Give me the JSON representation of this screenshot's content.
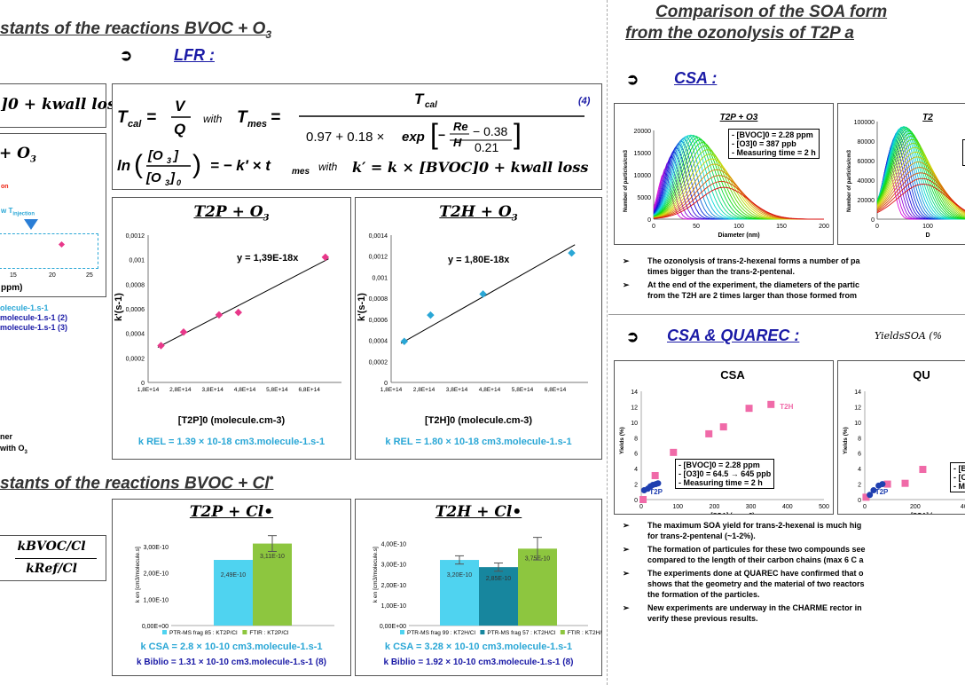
{
  "left": {
    "title1": "stants of the reactions BVOC + O",
    "title1_sub": "3",
    "lfr_label": "LFR :",
    "formula_frag": "]0 + kwall loss",
    "eq_tcal": "T",
    "eq_with": "with",
    "eq_num": "4",
    "eq_with2": "with",
    "eq_k_prime": "k′ = k × [BVOC]0 + kwall loss",
    "plus_o3_frag": "+ O",
    "plus_o3_sub": "3",
    "injection_frag": "w T",
    "injection_sub": "injection",
    "red_frag": "on",
    "ppm_frag": "ppm)",
    "axis_ticks_left": [
      "15",
      "20",
      "25"
    ],
    "molecule_frag1": "olecule-1.s-1",
    "molecule_frag2": "molecule-1.s-1 (2)",
    "molecule_frag3": "molecule-1.s-1 (3)",
    "ner_frag": "ner",
    "with_o3_frag": "with O",
    "with_o3_sub": "3",
    "title2": "stants of the reactions BVOC + Cl",
    "title2_sup": "•",
    "kbvoc_num": "kBVOC/Cl",
    "kref_den": "kRef/Cl"
  },
  "charts": {
    "t2p_o3": {
      "title": "T2P + O",
      "title_sub": "3",
      "equation": "y = 1,39E-18x",
      "ylabel": "k'(s-1)",
      "xlabel": "[T2P]0 (molecule.cm-3)",
      "k_rel": "k REL = 1.39 × 10-18 cm3.molecule-1.s-1"
    },
    "t2h_o3": {
      "title": "T2H + O",
      "title_sub": "3",
      "equation": "y = 1,80E-18x",
      "ylabel": "k'(s-1)",
      "xlabel": "[T2H]0 (molecule.cm-3)",
      "k_rel": "k REL = 1.80 × 10-18 cm3.molecule-1.s-1"
    },
    "t2p_cl": {
      "title": "T2P + Cl•",
      "ylabel": "k en [cm3/molecule.s]",
      "legend": [
        "PTR-MS frag 85 : KT2P/Cl",
        "FTIR : KT2P/Cl"
      ],
      "k_csa": "k CSA = 2.8 × 10-10 cm3.molecule-1.s-1",
      "k_biblio": "k Biblio = 1.31 × 10-10 cm3.molecule-1.s-1 (8)"
    },
    "t2h_cl": {
      "title": "T2H + Cl•",
      "ylabel": "k en [cm3/molecule.s]",
      "legend": [
        "PTR-MS frag 99 : KT2H/Cl",
        "PTR-MS frag 57 : KT2H/Cl",
        "FTIR : KT2H/Cl"
      ],
      "k_csa": "k CSA = 3.28 × 10-10 cm3.molecule-1.s-1",
      "k_biblio": "k Biblio = 1.92 × 10-10 cm3.molecule-1.s-1 (8)"
    },
    "csa_dist_t2p": {
      "title": "T2P + O3",
      "ylabel": "Number of particles/cm3",
      "xlabel": "Diameter (nm)",
      "info": [
        "- [BVOC]0 = 2.28  ppm",
        "- [O3]0 = 387 ppb",
        "- Measuring time = 2 h"
      ]
    },
    "csa_dist_t2h": {
      "title": "T2",
      "ylabel": "Number of particles/cm3",
      "xlabel": "D"
    },
    "yield_csa": {
      "title": "CSA",
      "ylabel": "Yields (%)",
      "xlabel": "[SOA] (µg.m-3)",
      "series_t2h": "T2H",
      "series_t2p": "T2P",
      "info": [
        "- [BVOC]0 = 2.28 ppm",
        "- [O3]0 = 64.5 → 645  ppb",
        "- Measuring time = 2 h"
      ]
    },
    "yield_quarec": {
      "title": "QU",
      "ylabel": "Yields (%)",
      "xlabel": "[SOA] (",
      "series_t2p": "T2P",
      "info": [
        "- [B",
        "- [O",
        "- M"
      ]
    }
  },
  "chart_data": [
    {
      "type": "scatter",
      "title": "T2P + O3",
      "xlabel": "[T2P]0 (molecule.cm-3)",
      "ylabel": "k'(s-1)",
      "xlim": [
        180000000000000.0,
        780000000000000.0
      ],
      "ylim": [
        0,
        0.0012
      ],
      "x_ticks": [
        "1,8E+14",
        "2,8E+14",
        "3,8E+14",
        "4,8E+14",
        "5,8E+14",
        "6,8E+14"
      ],
      "y_ticks": [
        "0",
        "0,0002",
        "0,0004",
        "0,0006",
        "0,0008",
        "0,001",
        "0,0012"
      ],
      "x": [
        220000000000000.0,
        290000000000000.0,
        400000000000000.0,
        460000000000000.0,
        730000000000000.0
      ],
      "y": [
        0.0003,
        0.00041,
        0.00055,
        0.00057,
        0.00102
      ],
      "color": "#e8388a"
    },
    {
      "type": "scatter",
      "title": "T2H + O3",
      "xlabel": "[T2H]0 (molecule.cm-3)",
      "ylabel": "k'(s-1)",
      "xlim": [
        180000000000000.0,
        780000000000000.0
      ],
      "ylim": [
        0,
        0.0014
      ],
      "x_ticks": [
        "1,8E+14",
        "2,8E+14",
        "3,8E+14",
        "4,8E+14",
        "5,8E+14",
        "6,8E+14"
      ],
      "y_ticks": [
        "0",
        "0,0002",
        "0,0004",
        "0,0006",
        "0,0008",
        "0,001",
        "0,0012",
        "0,0014"
      ],
      "x": [
        220000000000000.0,
        300000000000000.0,
        460000000000000.0,
        730000000000000.0
      ],
      "y": [
        0.00039,
        0.00064,
        0.00084,
        0.00123
      ],
      "color": "#2aa7d6"
    },
    {
      "type": "bar",
      "title": "T2P + Cl•",
      "categories": [
        "PTR-MS frag 85 : KT2P/Cl",
        "FTIR : KT2P/Cl"
      ],
      "values": [
        2.49e-10,
        3.11e-10
      ],
      "value_labels": [
        "2,49E-10",
        "3,11E-10"
      ],
      "ylim": [
        0,
        3.5e-10
      ],
      "y_ticks": [
        "0,00E+00",
        "1,00E-10",
        "2,00E-10",
        "3,00E-10"
      ],
      "colors": [
        "#4fd3f0",
        "#8dc63f"
      ]
    },
    {
      "type": "bar",
      "title": "T2H + Cl•",
      "categories": [
        "PTR-MS frag 99 : KT2H/Cl",
        "PTR-MS frag 57 : KT2H/Cl",
        "FTIR : KT2H/Cl"
      ],
      "values": [
        3.2e-10,
        2.85e-10,
        3.75e-10
      ],
      "value_labels": [
        "3,20E-10",
        "2,85E-10",
        "3,75E-10"
      ],
      "ylim": [
        0,
        4.5e-10
      ],
      "y_ticks": [
        "0,00E+00",
        "1,00E-10",
        "2,00E-10",
        "3,00E-10",
        "4,00E-10"
      ],
      "colors": [
        "#4fd3f0",
        "#17869e",
        "#8dc63f"
      ]
    },
    {
      "type": "line",
      "title": "T2P + O3",
      "xlabel": "Diameter (nm)",
      "ylabel": "Number of particles/cm3",
      "xlim": [
        0,
        200
      ],
      "ylim": [
        0,
        20000
      ],
      "x_ticks": [
        "0",
        "50",
        "100",
        "150",
        "200"
      ],
      "y_ticks": [
        "0",
        "5000",
        "10000",
        "15000",
        "20000"
      ]
    },
    {
      "type": "line",
      "title": "T2",
      "xlabel": "D",
      "ylabel": "Number of particles/cm3",
      "ylim": [
        0,
        100000
      ],
      "x_ticks": [
        "0",
        "100"
      ],
      "y_ticks": [
        "0",
        "20000",
        "40000",
        "60000",
        "80000",
        "100000"
      ]
    },
    {
      "type": "scatter",
      "title": "CSA",
      "xlabel": "[SOA] (µg.m-3)",
      "ylabel": "Yields (%)",
      "xlim": [
        0,
        500
      ],
      "ylim": [
        0,
        14
      ],
      "x_ticks": [
        "0",
        "100",
        "200",
        "300",
        "400",
        "500"
      ],
      "y_ticks": [
        "0",
        "2",
        "4",
        "6",
        "8",
        "10",
        "12",
        "14"
      ],
      "series": [
        {
          "name": "T2H",
          "x": [
            5,
            38,
            88,
            185,
            225,
            295,
            355
          ],
          "y": [
            0,
            3.1,
            6.1,
            8.5,
            9.4,
            11.8,
            12.3
          ]
        },
        {
          "name": "T2P",
          "x": [
            8,
            18,
            25,
            32,
            40,
            46
          ],
          "y": [
            1.2,
            1.4,
            1.7,
            1.9,
            2.0,
            2.1
          ]
        }
      ]
    },
    {
      "type": "scatter",
      "title": "QU",
      "xlabel": "[SOA] (",
      "ylabel": "Yields (%)",
      "xlim": [
        0,
        450
      ],
      "ylim": [
        0,
        14
      ],
      "x_ticks": [
        "0",
        "200",
        "400"
      ],
      "y_ticks": [
        "0",
        "2",
        "4",
        "6",
        "8",
        "10",
        "12",
        "14"
      ],
      "series": [
        {
          "name": "T2H",
          "x": [
            5,
            90,
            160,
            230
          ],
          "y": [
            0.3,
            2.0,
            2.1,
            3.9
          ]
        },
        {
          "name": "T2P",
          "x": [
            20,
            35,
            55,
            70
          ],
          "y": [
            0.6,
            1.2,
            1.8,
            2.0
          ]
        }
      ]
    }
  ],
  "right": {
    "title_line1": "Comparison of the SOA form",
    "title_line2": "from the ozonolysis of T2P a",
    "csa_label": "CSA :",
    "csa_bullets": [
      "The ozonolysis of trans-2-hexenal forms a number of pa",
      "times bigger than the trans-2-pentenal.",
      "At the end of the experiment, the diameters of the partic",
      "from the T2H are 2 times larger than those formed from"
    ],
    "csa_quarec_label": "CSA & QUAREC :",
    "yields_label": "YieldsSOA (%",
    "bottom_bullets": [
      "The maximum SOA yield for trans-2-hexenal is much hig",
      "for trans-2-pentenal (~1-2%).",
      "The formation of particules for these two compounds see",
      "compared to the length of their carbon chains (max 6 C a",
      "The experiments done at QUAREC have confirmed that o",
      "shows that the geometry and the material of two reactors",
      "the formation of the particles.",
      "New experiments are underway in the CHARME rector in",
      "verify these previous results."
    ],
    "bullet_glyph": "➢",
    "arrow_glyph": "➲"
  }
}
